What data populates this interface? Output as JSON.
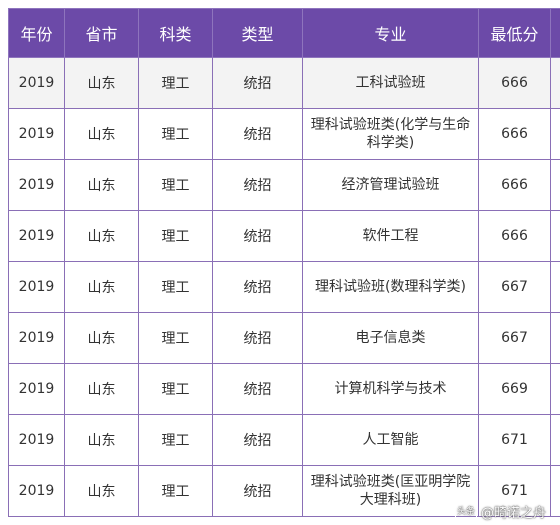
{
  "table": {
    "headers": [
      "年份",
      "省市",
      "科类",
      "类型",
      "专业",
      "最低分"
    ],
    "rows": [
      [
        "2019",
        "山东",
        "理工",
        "统招",
        "工科试验班",
        "666"
      ],
      [
        "2019",
        "山东",
        "理工",
        "统招",
        "理科试验班类(化学与生命科学类)",
        "666"
      ],
      [
        "2019",
        "山东",
        "理工",
        "统招",
        "经济管理试验班",
        "666"
      ],
      [
        "2019",
        "山东",
        "理工",
        "统招",
        "软件工程",
        "666"
      ],
      [
        "2019",
        "山东",
        "理工",
        "统招",
        "理科试验班(数理科学类)",
        "667"
      ],
      [
        "2019",
        "山东",
        "理工",
        "统招",
        "电子信息类",
        "667"
      ],
      [
        "2019",
        "山东",
        "理工",
        "统招",
        "计算机科学与技术",
        "669"
      ],
      [
        "2019",
        "山东",
        "理工",
        "统招",
        "人工智能",
        "671"
      ],
      [
        "2019",
        "山东",
        "理工",
        "统招",
        "理科试验班类(匡亚明学院大理科班)",
        "671"
      ]
    ]
  },
  "watermark": {
    "brand": "头条",
    "handle": "@畸诺之舟"
  },
  "colors": {
    "header_bg": "#6c4aa8",
    "header_text": "#ffffff",
    "border": "#8a6fb6",
    "first_row_bg": "#f3f3f3"
  }
}
